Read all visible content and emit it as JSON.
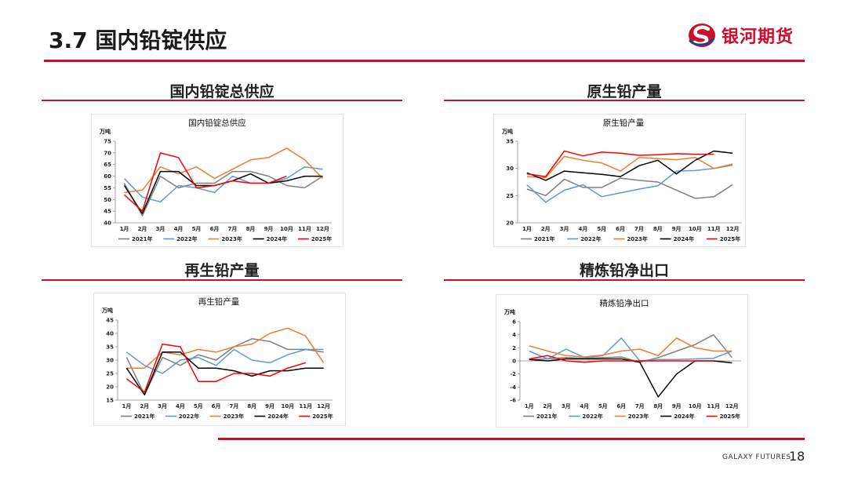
{
  "header": {
    "title": "3.7 国内铅锭供应",
    "brand": "银河期货"
  },
  "footer": {
    "brand": "GALAXY FUTURES",
    "page": "18"
  },
  "colors": {
    "accent": "#c8102e",
    "y2021": "#7f7f7f",
    "y2022": "#5b9bd5",
    "y2023": "#ed7d31",
    "y2024": "#000000",
    "y2025": "#ff0000"
  },
  "chart_data": [
    {
      "section": "国内铅锭总供应",
      "type": "line",
      "title": "国内铅锭总供应",
      "unit": "万吨",
      "categories": [
        "1月",
        "2月",
        "3月",
        "4月",
        "5月",
        "6月",
        "7月",
        "8月",
        "9月",
        "10月",
        "11月",
        "12月"
      ],
      "ylim": [
        40,
        75
      ],
      "yticks": [
        40,
        45,
        50,
        55,
        60,
        65,
        70,
        75
      ],
      "series": [
        {
          "name": "2021年",
          "values": [
            57,
            43,
            60,
            55,
            57,
            57,
            62,
            62,
            60,
            56,
            55,
            60
          ]
        },
        {
          "name": "2022年",
          "values": [
            59,
            51,
            49,
            56,
            55,
            53,
            60,
            57,
            57,
            59,
            64,
            63
          ]
        },
        {
          "name": "2023年",
          "values": [
            53,
            54,
            64,
            61,
            64,
            59,
            63,
            67,
            68,
            72,
            67,
            59
          ]
        },
        {
          "name": "2024年",
          "values": [
            56,
            44,
            62,
            62,
            56,
            56,
            58,
            61,
            57,
            58,
            60,
            60
          ]
        },
        {
          "name": "2025年",
          "values": [
            52,
            45,
            70,
            68,
            55,
            56,
            58,
            57,
            57,
            60,
            null,
            null
          ]
        }
      ]
    },
    {
      "section": "原生铅产量",
      "type": "line",
      "title": "原生铅产量",
      "unit": "万吨",
      "categories": [
        "1月",
        "2月",
        "3月",
        "4月",
        "5月",
        "6月",
        "7月",
        "8月",
        "9月",
        "10月",
        "11月",
        "12月"
      ],
      "ylim": [
        20,
        35
      ],
      "yticks": [
        20,
        25,
        30,
        35
      ],
      "series": [
        {
          "name": "2021年",
          "values": [
            26.2,
            25.0,
            28.0,
            26.5,
            26.5,
            28.2,
            27.8,
            27.5,
            26.0,
            24.5,
            24.8,
            27.0
          ]
        },
        {
          "name": "2022年",
          "values": [
            27.0,
            23.8,
            26.0,
            27.0,
            24.8,
            25.5,
            26.2,
            26.8,
            29.5,
            29.6,
            30.0,
            30.6
          ]
        },
        {
          "name": "2023年",
          "values": [
            28.5,
            28.3,
            32.2,
            31.5,
            31.0,
            29.5,
            32.0,
            31.8,
            31.6,
            32.0,
            30.0,
            30.8
          ]
        },
        {
          "name": "2024年",
          "values": [
            29.2,
            27.8,
            29.5,
            29.2,
            28.9,
            28.5,
            30.5,
            31.5,
            29.0,
            31.5,
            33.2,
            32.8
          ]
        },
        {
          "name": "2025年",
          "values": [
            29.0,
            28.5,
            33.2,
            32.3,
            33.0,
            32.8,
            32.4,
            32.5,
            32.7,
            32.6,
            32.6,
            null
          ]
        }
      ]
    },
    {
      "section": "再生铅产量",
      "type": "line",
      "title": "再生铅产量",
      "unit": "万吨",
      "categories": [
        "1月",
        "2月",
        "3月",
        "4月",
        "5月",
        "6月",
        "7月",
        "8月",
        "9月",
        "10月",
        "11月",
        "12月"
      ],
      "ylim": [
        15,
        45
      ],
      "yticks": [
        15,
        20,
        25,
        30,
        35,
        40,
        45
      ],
      "series": [
        {
          "name": "2021年",
          "values": [
            31,
            17,
            31,
            28,
            32,
            30,
            35,
            38,
            37,
            34,
            34,
            33
          ]
        },
        {
          "name": "2022年",
          "values": [
            33,
            28,
            25,
            30,
            31,
            28,
            34,
            30,
            29,
            32,
            34,
            34
          ]
        },
        {
          "name": "2023年",
          "values": [
            27,
            27,
            33,
            32,
            34,
            33,
            35,
            36,
            40,
            42,
            39,
            29
          ]
        },
        {
          "name": "2024年",
          "values": [
            27,
            17,
            33,
            33,
            27,
            27,
            26,
            24,
            26,
            26,
            27,
            27
          ]
        },
        {
          "name": "2025年",
          "values": [
            23,
            18,
            36,
            35,
            22,
            22,
            25,
            25,
            24,
            27,
            29,
            null
          ]
        }
      ]
    },
    {
      "section": "精炼铅净出口",
      "type": "line",
      "title": "精炼铅净出口",
      "unit": "万吨",
      "categories": [
        "1月",
        "2月",
        "3月",
        "4月",
        "5月",
        "6月",
        "7月",
        "8月",
        "9月",
        "10月",
        "11月",
        "12月"
      ],
      "ylim": [
        -6,
        6
      ],
      "yticks": [
        -6,
        -4,
        -2,
        0,
        2,
        4,
        6
      ],
      "series": [
        {
          "name": "2021年",
          "values": [
            0.2,
            0.3,
            0.5,
            0.4,
            0.5,
            0.6,
            -0.2,
            0.5,
            1.5,
            2.5,
            4.0,
            0.5
          ]
        },
        {
          "name": "2022年",
          "values": [
            1.5,
            0.3,
            1.8,
            0.5,
            0.8,
            3.5,
            0.0,
            0.2,
            0.2,
            0.3,
            0.4,
            1.5
          ]
        },
        {
          "name": "2023年",
          "values": [
            2.3,
            1.5,
            0.8,
            0.6,
            0.9,
            1.5,
            1.8,
            0.8,
            3.5,
            2.0,
            1.5,
            1.5
          ]
        },
        {
          "name": "2024年",
          "values": [
            0.2,
            0.0,
            0.3,
            0.3,
            0.3,
            0.3,
            -0.2,
            -5.5,
            -2.0,
            0.0,
            0.0,
            -0.3
          ]
        },
        {
          "name": "2025年",
          "values": [
            0.3,
            0.8,
            0.0,
            -0.2,
            0.0,
            0.0,
            0.0,
            0.0,
            0.0,
            0.0,
            0.0,
            null
          ]
        }
      ]
    }
  ]
}
